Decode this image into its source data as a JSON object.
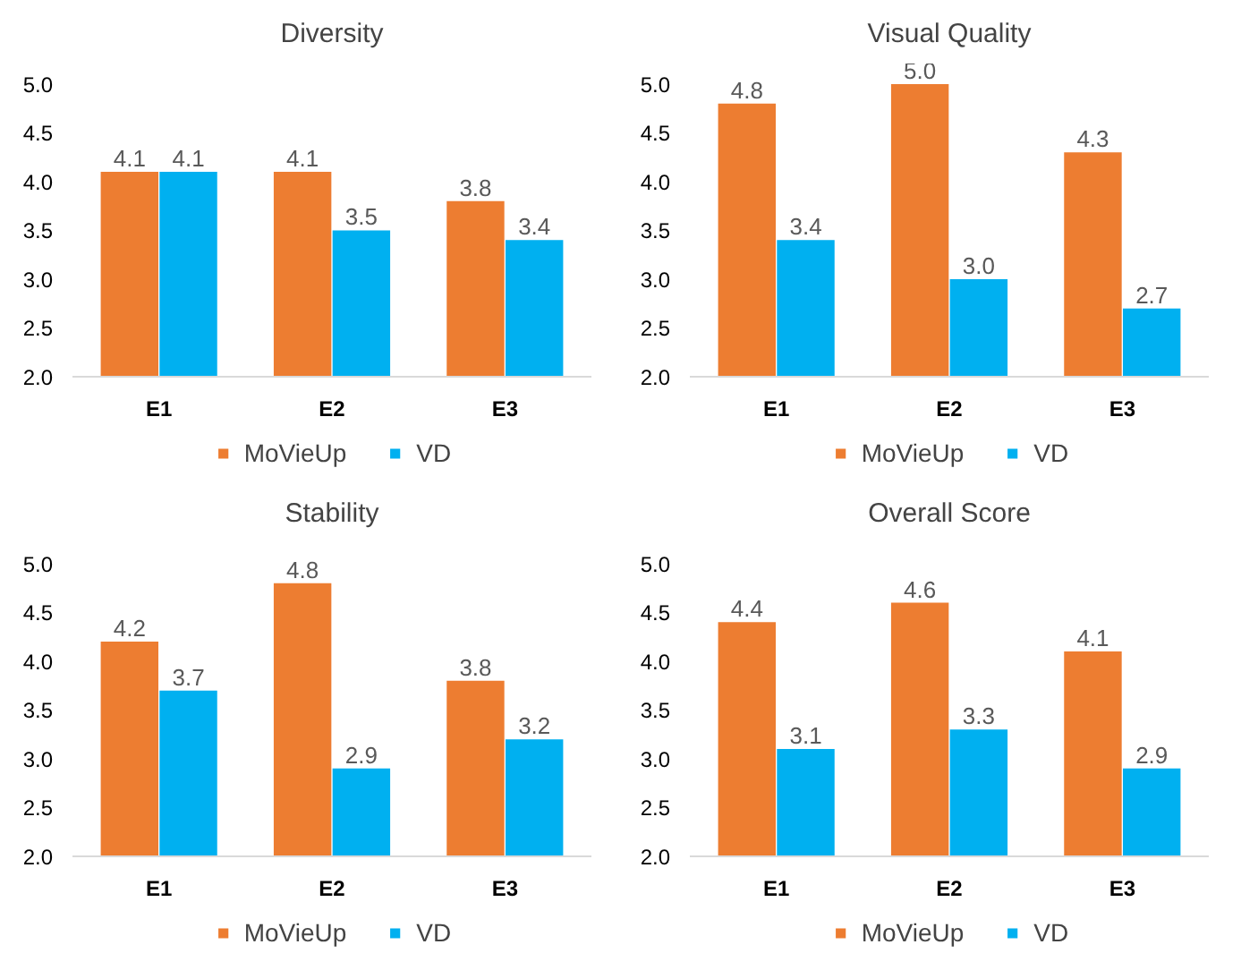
{
  "chart_data": [
    {
      "type": "bar",
      "title": "Diversity",
      "categories": [
        "E1",
        "E2",
        "E3"
      ],
      "series": [
        {
          "name": "MoVieUp",
          "color": "#ed7d31",
          "values": [
            4.1,
            4.1,
            3.8
          ],
          "value_labels": [
            "4.1",
            "4.1",
            "3.8"
          ]
        },
        {
          "name": "VD",
          "color": "#00b0f0",
          "values": [
            4.1,
            3.5,
            3.4
          ],
          "value_labels": [
            "4.1",
            "3.5",
            "3.4"
          ]
        }
      ],
      "ylim": [
        2,
        5
      ],
      "yticks": [
        {
          "value": 2,
          "label": "2.0"
        },
        2.5,
        {
          "value": 3,
          "label": "3.0"
        },
        3.5,
        {
          "value": 4,
          "label": "4.0"
        },
        4.5,
        {
          "value": 5,
          "label": "5.0"
        }
      ],
      "legend": "bottom"
    },
    {
      "type": "bar",
      "title": "Visual Quality",
      "categories": [
        "E1",
        "E2",
        "E3"
      ],
      "series": [
        {
          "name": "MoVieUp",
          "color": "#ed7d31",
          "values": [
            4.8,
            5.0,
            4.3
          ],
          "value_labels": [
            "4.8",
            "5.0",
            "4.3"
          ]
        },
        {
          "name": "VD",
          "color": "#00b0f0",
          "values": [
            3.4,
            3.0,
            2.7
          ],
          "value_labels": [
            "3.4",
            "3.0",
            "2.7"
          ]
        }
      ],
      "ylim": [
        2,
        5
      ],
      "yticks": [
        {
          "value": 2,
          "label": "2.0"
        },
        2.5,
        {
          "value": 3,
          "label": "3.0"
        },
        3.5,
        {
          "value": 4,
          "label": "4.0"
        },
        4.5,
        {
          "value": 5,
          "label": "5.0"
        }
      ],
      "legend": "bottom"
    },
    {
      "type": "bar",
      "title": "Stability",
      "categories": [
        "E1",
        "E2",
        "E3"
      ],
      "series": [
        {
          "name": "MoVieUp",
          "color": "#ed7d31",
          "values": [
            4.2,
            4.8,
            3.8
          ],
          "value_labels": [
            "4.2",
            "4.8",
            "3.8"
          ]
        },
        {
          "name": "VD",
          "color": "#00b0f0",
          "values": [
            3.7,
            2.9,
            3.2
          ],
          "value_labels": [
            "3.7",
            "2.9",
            "3.2"
          ]
        }
      ],
      "ylim": [
        2,
        5
      ],
      "yticks": [
        {
          "value": 2,
          "label": "2.0"
        },
        2.5,
        {
          "value": 3,
          "label": "3.0"
        },
        3.5,
        {
          "value": 4,
          "label": "4.0"
        },
        4.5,
        {
          "value": 5,
          "label": "5.0"
        }
      ],
      "legend": "bottom"
    },
    {
      "type": "bar",
      "title": "Overall Score",
      "categories": [
        "E1",
        "E2",
        "E3"
      ],
      "series": [
        {
          "name": "MoVieUp",
          "color": "#ed7d31",
          "values": [
            4.4,
            4.6,
            4.1
          ],
          "value_labels": [
            "4.4",
            "4.6",
            "4.1"
          ]
        },
        {
          "name": "VD",
          "color": "#00b0f0",
          "values": [
            3.1,
            3.3,
            2.9
          ],
          "value_labels": [
            "3.1",
            "3.3",
            "2.9"
          ]
        }
      ],
      "ylim": [
        2,
        5
      ],
      "yticks": [
        {
          "value": 2,
          "label": "2.0"
        },
        2.5,
        {
          "value": 3,
          "label": "3.0"
        },
        3.5,
        {
          "value": 4,
          "label": "4.0"
        },
        4.5,
        {
          "value": 5,
          "label": "5.0"
        }
      ],
      "legend": "bottom"
    }
  ]
}
